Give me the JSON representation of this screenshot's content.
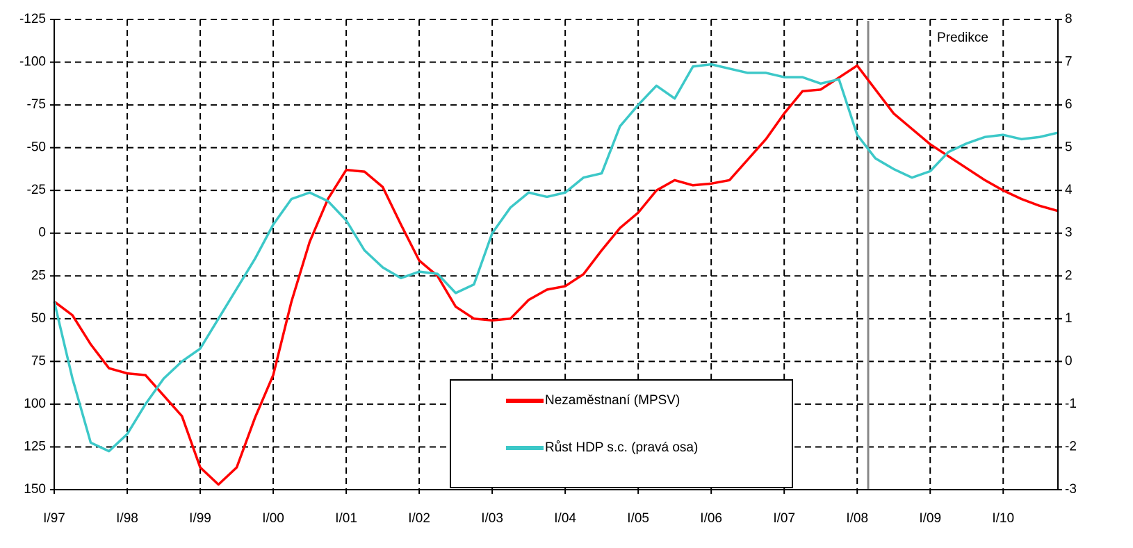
{
  "chart_data": {
    "type": "line",
    "annotations": [
      "Predikce"
    ],
    "categories": [
      "I/97",
      null,
      null,
      null,
      "I/98",
      null,
      null,
      null,
      "I/99",
      null,
      null,
      null,
      "I/00",
      null,
      null,
      null,
      "I/01",
      null,
      null,
      null,
      "I/02",
      null,
      null,
      null,
      "I/03",
      null,
      null,
      null,
      "I/04",
      null,
      null,
      null,
      "I/05",
      null,
      null,
      null,
      "I/06",
      null,
      null,
      null,
      "I/07",
      null,
      null,
      null,
      "I/08",
      null,
      null,
      null,
      "I/09",
      null,
      null,
      null,
      "I/10",
      null,
      null,
      null
    ],
    "series": [
      {
        "name": "Nezaměstnaní (MPSV)",
        "color": "#ff0000",
        "axis": "y",
        "values": [
          40,
          48,
          65,
          79,
          82,
          83,
          95,
          107,
          137,
          147,
          137,
          108,
          83,
          40,
          5,
          -20,
          -37,
          -36,
          -27,
          -5,
          16,
          25,
          43,
          50,
          51,
          50,
          39,
          33,
          31,
          24,
          10,
          -3,
          -12,
          -25,
          -31,
          -28,
          -29,
          -31,
          -43,
          -55,
          -70,
          -83,
          -84,
          -91,
          -98,
          -84,
          -70,
          -61,
          -52,
          -45,
          -38,
          -31,
          -25,
          -20,
          -16,
          -13
        ]
      },
      {
        "name": "Růst HDP s.c. (pravá osa)",
        "color": "#3cc8c8",
        "axis": "y2",
        "values": [
          1.4,
          -0.4,
          -1.9,
          -2.1,
          -1.7,
          -1.0,
          -0.4,
          0.0,
          0.3,
          1.0,
          1.7,
          2.4,
          3.2,
          3.8,
          3.95,
          3.75,
          3.3,
          2.6,
          2.2,
          1.95,
          2.1,
          2.05,
          1.6,
          1.8,
          3.0,
          3.6,
          3.95,
          3.85,
          3.95,
          4.3,
          4.4,
          5.5,
          6.0,
          6.45,
          6.15,
          6.9,
          6.95,
          6.85,
          6.75,
          6.75,
          6.65,
          6.65,
          6.5,
          6.6,
          5.3,
          4.75,
          4.5,
          4.3,
          4.45,
          4.9,
          5.1,
          5.25,
          5.3,
          5.2,
          5.25,
          5.35
        ]
      }
    ],
    "ylim": [
      -125,
      150
    ],
    "y_reversed": true,
    "yticks": [
      -125,
      -100,
      -75,
      -50,
      -25,
      0,
      25,
      50,
      75,
      100,
      125,
      150
    ],
    "y2lim": [
      -3,
      8
    ],
    "y2ticks": [
      8,
      7,
      6,
      5,
      4,
      3,
      2,
      1,
      0,
      -1,
      -2,
      -3
    ],
    "grid": true
  }
}
